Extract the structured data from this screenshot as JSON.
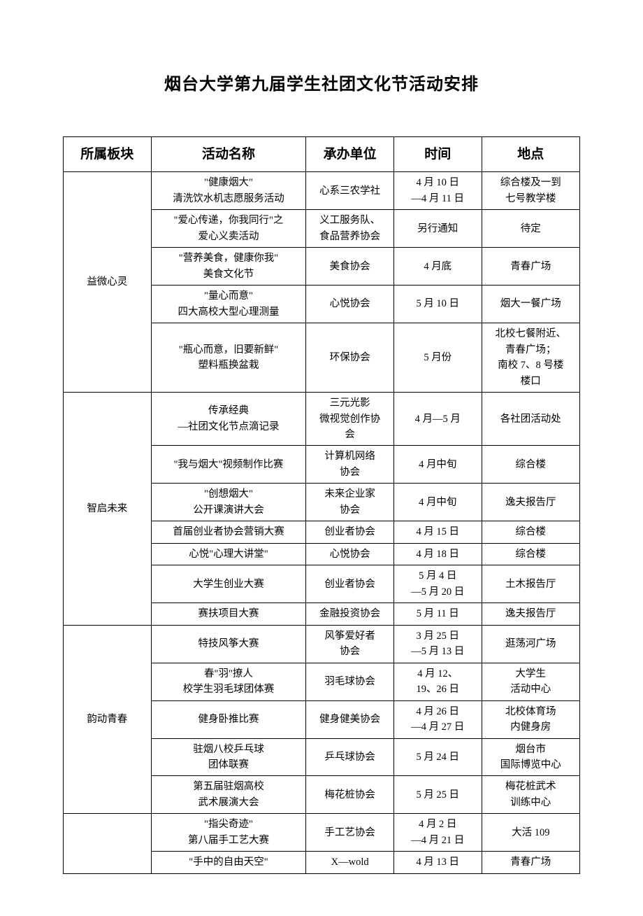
{
  "title": "烟台大学第九届学生社团文化节活动安排",
  "headers": [
    "所属板块",
    "活动名称",
    "承办单位",
    "时间",
    "地点"
  ],
  "sections": [
    {
      "name": "益微心灵",
      "rows": [
        {
          "activity": "\"健康烟大\"\n清洗饮水机志愿服务活动",
          "org": "心系三农学社",
          "time": "4 月 10 日\n—4 月 11 日",
          "place": "综合楼及一到\n七号教学楼"
        },
        {
          "activity": "\"爱心传递，你我同行\"之\n爱心义卖活动",
          "org": "义工服务队、\n食品营养协会",
          "time": "另行通知",
          "place": "待定"
        },
        {
          "activity": "\"营养美食，健康你我\"\n美食文化节",
          "org": "美食协会",
          "time": "4 月底",
          "place": "青春广场"
        },
        {
          "activity": "\"量心而意\"\n四大高校大型心理测量",
          "org": "心悦协会",
          "time": "5 月 10 日",
          "place": "烟大一餐广场"
        },
        {
          "activity": "\"瓶心而意，旧要新鲜\"\n塑料瓶换盆栽",
          "org": "环保协会",
          "time": "5 月份",
          "place": "北校七餐附近、\n青春广场；\n南校 7、8 号楼\n楼口",
          "tall": true
        }
      ]
    },
    {
      "name": "智启未来",
      "rows": [
        {
          "activity": "传承经典\n—社团文化节点滴记录",
          "org": "三元光影\n微视觉创作协\n会",
          "time": "4 月—5 月",
          "place": "各社团活动处"
        },
        {
          "activity": "\"我与烟大\"视频制作比赛",
          "org": "计算机网络\n协会",
          "time": "4 月中旬",
          "place": "综合楼"
        },
        {
          "activity": "\"创想烟大\"\n公开课演讲大会",
          "org": "未来企业家\n协会",
          "time": "4 月中旬",
          "place": "逸夫报告厅"
        },
        {
          "activity": "首届创业者协会营销大赛",
          "org": "创业者协会",
          "time": "4 月 15 日",
          "place": "综合楼"
        },
        {
          "activity": "心悦\"心理大讲堂\"",
          "org": "心悦协会",
          "time": "4 月 18 日",
          "place": "综合楼"
        },
        {
          "activity": "大学生创业大赛",
          "org": "创业者协会",
          "time": "5 月 4 日\n—5 月 20 日",
          "place": "土木报告厅"
        },
        {
          "activity": "赛扶项目大赛",
          "org": "金融投资协会",
          "time": "5 月 11 日",
          "place": "逸夫报告厅"
        }
      ]
    },
    {
      "name": "韵动青春",
      "rows": [
        {
          "activity": "特技风筝大赛",
          "org": "风筝爱好者\n协会",
          "time": "3 月 25 日\n—5 月 13 日",
          "place": "逛荡河广场"
        },
        {
          "activity": "春\"羽\"撩人\n校学生羽毛球团体赛",
          "org": "羽毛球协会",
          "time": "4 月 12、\n19、26 日",
          "place": "大学生\n活动中心"
        },
        {
          "activity": "健身卧推比赛",
          "org": "健身健美协会",
          "time": "4 月 26 日\n—4 月 27 日",
          "place": "北校体育场\n内健身房"
        },
        {
          "activity": "驻烟八校乒乓球\n团体联赛",
          "org": "乒乓球协会",
          "time": "5 月 24 日",
          "place": "烟台市\n国际博览中心"
        },
        {
          "activity": "第五届驻烟高校\n武术展演大会",
          "org": "梅花桩协会",
          "time": "5 月 25 日",
          "place": "梅花桩武术\n训练中心"
        }
      ]
    },
    {
      "name": "",
      "open": true,
      "rows": [
        {
          "activity": "\"指尖奇迹\"\n第八届手工艺大赛",
          "org": "手工艺协会",
          "time": "4 月 2 日\n—4 月 21 日",
          "place": "大活 109"
        },
        {
          "activity": "\"手中的自由天空\"",
          "org": "X—wold",
          "time": "4 月 13 日",
          "place": "青春广场"
        }
      ]
    }
  ]
}
